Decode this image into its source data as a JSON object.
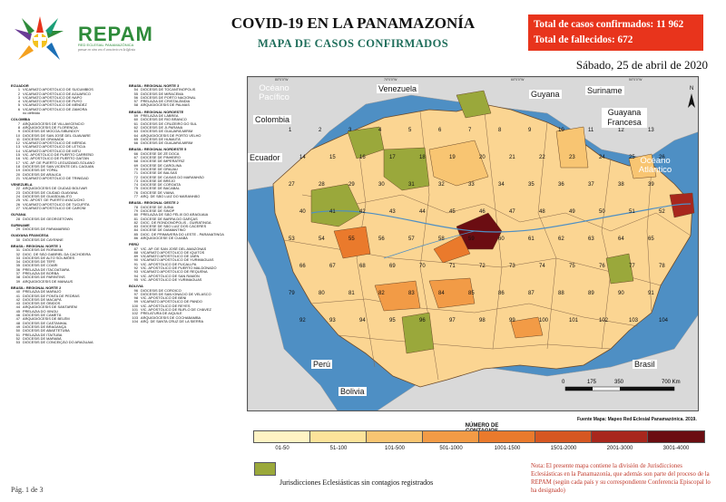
{
  "header": {
    "title": "COVID-19 EN LA PANAMAZONÍA",
    "subtitle": "MAPA DE CASOS CONFIRMADOS",
    "totals": {
      "confirmed": "Total de casos confirmados: 11 962",
      "deaths": "Total de fallecidos: 672"
    },
    "date": "Sábado, 25 de abril de 2020"
  },
  "logo": {
    "name": "REPAM",
    "sub": "RED ECLESIAL PANAMAZÓNICA",
    "tagline": "pensar en otra vez el concierto en la Iglesia"
  },
  "jurisdictions_left": [
    {
      "section": "ECUADOR",
      "items": [
        [
          "1",
          "VICARIATO APOSTÓLICO DE SUCUMBÍOS"
        ],
        [
          "2",
          "VICARIATO APOSTÓLICO DE AGUARICO"
        ],
        [
          "3",
          "VICARIATO APOSTÓLICO DE NAPO"
        ],
        [
          "4",
          "VICARIATO APOSTÓLICO DE PUYO"
        ],
        [
          "5",
          "VICARIATO APOSTÓLICO DE MÉNDEZ"
        ],
        [
          "6",
          "VICARIATO APOSTÓLICO DE ZAMORA"
        ],
        [
          "",
          "no definido"
        ]
      ]
    },
    {
      "section": "COLOMBIA",
      "items": [
        [
          "7",
          "ARQUIDIÓCESIS DE VILLAVICENCIO"
        ],
        [
          "8",
          "ARQUIDIÓCESIS DE FLORENCIA"
        ],
        [
          "9",
          "DIÓCESIS DE MOCOA-SIBUNDOY"
        ],
        [
          "10",
          "DIÓCESIS DE SAN JOSÉ DEL GUAVIARE"
        ],
        [
          "11",
          "DIÓCESIS DE GRANADA"
        ],
        [
          "12",
          "VICARIATO APOSTÓLICO DE MÉRIDA"
        ],
        [
          "13",
          "VICARIATO APOSTÓLICO DE LETICIA"
        ],
        [
          "14",
          "VICARIATO APOSTÓLICO DE MITÚ"
        ],
        [
          "15",
          "VIC. APOSTÓLICO DE PUERTO CARREÑO"
        ],
        [
          "16",
          "VIC. APOSTÓLICO DE PUERTO GAITÁN"
        ],
        [
          "17",
          "VIC. AP. DE PUERTO LEGUÍZAMO-SOLANO"
        ],
        [
          "18",
          "DIÓCESIS DE SAN VICENTE DEL CAGUÁN"
        ],
        [
          "19",
          "DIÓCESIS DE YOPAL"
        ],
        [
          "20",
          "DIÓCESIS DE ARAUCA"
        ],
        [
          "21",
          "VICARIATO APOSTÓLICO DE TRINIDAD"
        ]
      ]
    },
    {
      "section": "VENEZUELA",
      "items": [
        [
          "22",
          "ARQUIDIÓCESIS DE CIUDAD BOLÍVAR"
        ],
        [
          "23",
          "DIÓCESIS DE CIUDAD GUAYANA"
        ],
        [
          "24",
          "DIÓCESIS DE GUASDUALITO"
        ],
        [
          "25",
          "VIC. APOST. DE PUERTO AYACUCHO"
        ],
        [
          "26",
          "VICARIATO APOSTÓLICO DE TUCUPITA"
        ],
        [
          "27",
          "VICARIATO APOSTÓLICO DE CARONÍ"
        ]
      ]
    },
    {
      "section": "GUYANA",
      "items": [
        [
          "28",
          "DIÓCESIS DE GEORGETOWN"
        ]
      ]
    },
    {
      "section": "SURINAME",
      "items": [
        [
          "29",
          "DIÓCESIS DE PARAMARIBO"
        ]
      ]
    },
    {
      "section": "GUAYANA FRANCESA",
      "items": [
        [
          "30",
          "DIÓCESIS DE CAYENNE"
        ]
      ]
    },
    {
      "section": "BRASIL: REGIONAL NORTE 1",
      "items": [
        [
          "31",
          "DIÓCESIS DE RORAIMA"
        ],
        [
          "32",
          "DIOC. DE SÃO GABRIEL DA CACHOEIRA"
        ],
        [
          "33",
          "DIÓCESIS DE ALTO SOLIMÕES"
        ],
        [
          "34",
          "DIÓCESIS DE TEFÉ"
        ],
        [
          "35",
          "DIÓCESIS DE COARI"
        ],
        [
          "36",
          "PRELAZIA DE ITACOATIARA"
        ],
        [
          "37",
          "PRELAZIA DE BORBA"
        ],
        [
          "38",
          "DIÓCESIS DE PARINTINS"
        ],
        [
          "39",
          "ARQUIDIÓCESIS DE MANAUS"
        ]
      ]
    },
    {
      "section": "BRASIL: REGIONAL NORTE 2",
      "items": [
        [
          "40",
          "PRELAZIA DE MARAJÓ"
        ],
        [
          "41",
          "DIÓCESIS DE PONTA DE PEDRAS"
        ],
        [
          "42",
          "DIÓCESIS DE MACAPÁ"
        ],
        [
          "43",
          "DIÓCESIS DE ÓBIDOS"
        ],
        [
          "44",
          "ARQUIDIÓCESIS DE SANTARÉM"
        ],
        [
          "45",
          "PRELAZIA DO XINGU"
        ],
        [
          "46",
          "DIÓCESIS DE CAMETÁ"
        ],
        [
          "47",
          "ARQUIDIÓCESIS DE BELÉM"
        ],
        [
          "48",
          "DIÓCESIS DE CASTANHAL"
        ],
        [
          "49",
          "DIÓCESIS DE BRAGANÇA"
        ],
        [
          "50",
          "DIÓCESIS DE ABAETETUBA"
        ],
        [
          "51",
          "PRELAZIA DE ITAITUBA"
        ],
        [
          "52",
          "DIÓCESIS DE MARABÁ"
        ],
        [
          "53",
          "DIÓCESIS DE CONCEIÇÃO DO ARAGUAIA"
        ]
      ]
    }
  ],
  "jurisdictions_right": [
    {
      "section": "BRASIL: REGIONAL NORTE 3",
      "items": [
        [
          "54",
          "DIÓCESIS DE TOCANTINÓPOLIS"
        ],
        [
          "55",
          "DIÓCESIS DE MIRACEMA"
        ],
        [
          "56",
          "DIÓCESIS DE PORTO NACIONAL"
        ],
        [
          "57",
          "PRELAZIA DE CRISTALÂNDIA"
        ],
        [
          "58",
          "ARQUIDIÓCESIS DE PALMAS"
        ]
      ]
    },
    {
      "section": "BRASIL: REGIONAL NOROESTE",
      "items": [
        [
          "59",
          "PRELAZIA DE LÁBREA"
        ],
        [
          "60",
          "DIÓCESIS DE RIO BRANCO"
        ],
        [
          "61",
          "DIÓCESIS DE CRUZEIRO DO SUL"
        ],
        [
          "62",
          "DIÓCESIS DE JI-PARANÁ"
        ],
        [
          "63",
          "DIÓCESIS DE GUAJARÁ-MIRIM"
        ],
        [
          "64",
          "ARQUIDIÓCESIS DE PORTO VELHO"
        ],
        [
          "65",
          "DIÓCESIS DE HUMAITÁ"
        ],
        [
          "66",
          "DIÓCESIS DE GUAJARÁ-MIRIM"
        ]
      ]
    },
    {
      "section": "BRASIL: REGIONAL NORDESTE 5",
      "items": [
        [
          "66",
          "DIOCESE DE ZÉ DOCA"
        ],
        [
          "67",
          "DIOCESE DE PINHEIRO"
        ],
        [
          "68",
          "DIOCESE DE IMPERATRIZ"
        ],
        [
          "69",
          "DIOCESE DE CAROLINA"
        ],
        [
          "70",
          "DIOCESE DE GRAJAÚ"
        ],
        [
          "71",
          "DIOCESE DE BALSAS"
        ],
        [
          "72",
          "DIOCESE DE CAXIAS DO MARANHÃO"
        ],
        [
          "73",
          "DIOCESE DE BREJO"
        ],
        [
          "74",
          "DIOCESE DE COROATÁ"
        ],
        [
          "75",
          "DIOCESE DE BACABAL"
        ],
        [
          "76",
          "DIOCESE DE VIANA"
        ],
        [
          "77",
          "ARQ. DE SÃO LUIZ DO MARANHÃO"
        ]
      ]
    },
    {
      "section": "BRASIL: REGIONAL OESTE 2",
      "items": [
        [
          "78",
          "DIOCESE DE JUÍNA"
        ],
        [
          "79",
          "DIOCESE DE SINOP"
        ],
        [
          "80",
          "PRELAZIA DE SÃO FÉLIX DO ARAGUAIA"
        ],
        [
          "81",
          "DIOCESE DE BARRA DO GARÇAS"
        ],
        [
          "82",
          "DIOC. DE RONDONÓPOLIS - GUIRATINGA"
        ],
        [
          "83",
          "DIOCESE DE SÃO LUIZ DOS CÁCERES"
        ],
        [
          "84",
          "DIOCESE DE DIAMANTINO"
        ],
        [
          "85",
          "DIOC. DE PRIMAVERA DO LESTE - PARANATINGA"
        ],
        [
          "86",
          "ARQUIDIOCESE DE CUIABÁ"
        ]
      ]
    },
    {
      "section": "PERÚ",
      "items": [
        [
          "87",
          "VIC. AP. DE SAN JOSÉ DEL AMAZONAS"
        ],
        [
          "88",
          "VICARIATO APOSTÓLICO DE IQUITOS"
        ],
        [
          "89",
          "VICARIATO APOSTÓLICO DE JAÉN"
        ],
        [
          "90",
          "VICARIATO APOSTÓLICO DE YURIMAGUAS"
        ],
        [
          "91",
          "VIC. APOSTÓLICO DE PUCALLPA"
        ],
        [
          "92",
          "VIC. APOSTÓLICO DE PUERTO MALDONADO"
        ],
        [
          "93",
          "VICARIATO APOSTÓLICO DE REQUENA"
        ],
        [
          "94",
          "VIC. APOSTÓLICO DE SAN RAMÓN"
        ],
        [
          "95",
          "VIC. APOSTÓLICO DE YURIMAGUAS"
        ]
      ]
    },
    {
      "section": "BOLIVIA",
      "items": [
        [
          "96",
          "DIÓCESIS DE COROICO"
        ],
        [
          "97",
          "DIÓCESIS DE SAN IGNACIO DE VELASCO"
        ],
        [
          "98",
          "VIC. APOSTÓLICO DE BENI"
        ],
        [
          "99",
          "VICARIATO APOSTÓLICO DE PANDO"
        ],
        [
          "100",
          "VIC. APOSTÓLICO DE REYES"
        ],
        [
          "101",
          "VIC. APOSTÓLICO DE ÑUFLO DE CHÁVEZ"
        ],
        [
          "102",
          "PRELATURA DE AIQUILE"
        ],
        [
          "103",
          "ARQUIDIÓCESIS DE COCHABAMBA"
        ],
        [
          "104",
          "ARQ. DE SANTA CRUZ DE LA SIERRA"
        ]
      ]
    }
  ],
  "map": {
    "countries": [
      "Venezuela",
      "Colombia",
      "Ecuador",
      "Guyana",
      "Suriname",
      "Guayana Francesa",
      "Perú",
      "Bolivia",
      "Brasil"
    ],
    "oceans": [
      "Océano Pacífico",
      "Océano Atlántico"
    ],
    "scale": [
      "0",
      "175",
      "350",
      "700 Km"
    ],
    "region_numbers": [
      "1",
      "2",
      "3",
      "4",
      "5",
      "6",
      "7",
      "8",
      "9",
      "10",
      "11",
      "12",
      "13",
      "14",
      "15",
      "16",
      "17",
      "18",
      "19",
      "20",
      "21",
      "22",
      "23",
      "24",
      "25",
      "26",
      "27",
      "28",
      "29",
      "30",
      "31",
      "32",
      "33",
      "34",
      "35",
      "36",
      "37",
      "38",
      "39",
      "40",
      "41",
      "42",
      "43",
      "44",
      "45",
      "46",
      "47",
      "48",
      "49",
      "50",
      "51",
      "52",
      "53",
      "54",
      "55",
      "56",
      "57",
      "58",
      "59",
      "60",
      "61",
      "62",
      "63",
      "64",
      "65",
      "66",
      "67",
      "68",
      "69",
      "70",
      "71",
      "72",
      "73",
      "74",
      "75",
      "76",
      "77",
      "78",
      "79",
      "80",
      "81",
      "82",
      "83",
      "84",
      "85",
      "86",
      "87",
      "88",
      "89",
      "90",
      "91",
      "92",
      "93",
      "94",
      "95",
      "96",
      "97",
      "98",
      "99",
      "100",
      "101",
      "102",
      "103",
      "104"
    ]
  },
  "contagion_scale": {
    "title": "NÚMERO DE CONTAGIOS",
    "bins": [
      {
        "label": "01-50",
        "color": "#fff3c4"
      },
      {
        "label": "51-100",
        "color": "#fde39a"
      },
      {
        "label": "101-500",
        "color": "#f8c572"
      },
      {
        "label": "501-1000",
        "color": "#f29b46"
      },
      {
        "label": "1001-1500",
        "color": "#ea7a2c"
      },
      {
        "label": "1501-2000",
        "color": "#d65722"
      },
      {
        "label": "2001-3000",
        "color": "#a8271d"
      },
      {
        "label": "3001-4000",
        "color": "#6b0d12"
      }
    ],
    "no_cases_label": "Jurisdicciones Eclesiásticas sin contagios registrados",
    "no_cases_color": "#9aa83b"
  },
  "source": "Fuente Mapa: Mapeo Red Eclesial Panamazónica. 2019.",
  "note": "Nota: El presente mapa contiene la división de Jurisdicciones Eclesiásticas en la Panamazonía, que además son parte del proceso de la REPAM (según cada país y su correspondiente Conferencia Episcopal lo ha designado)",
  "page": "Pág. 1 de 3"
}
